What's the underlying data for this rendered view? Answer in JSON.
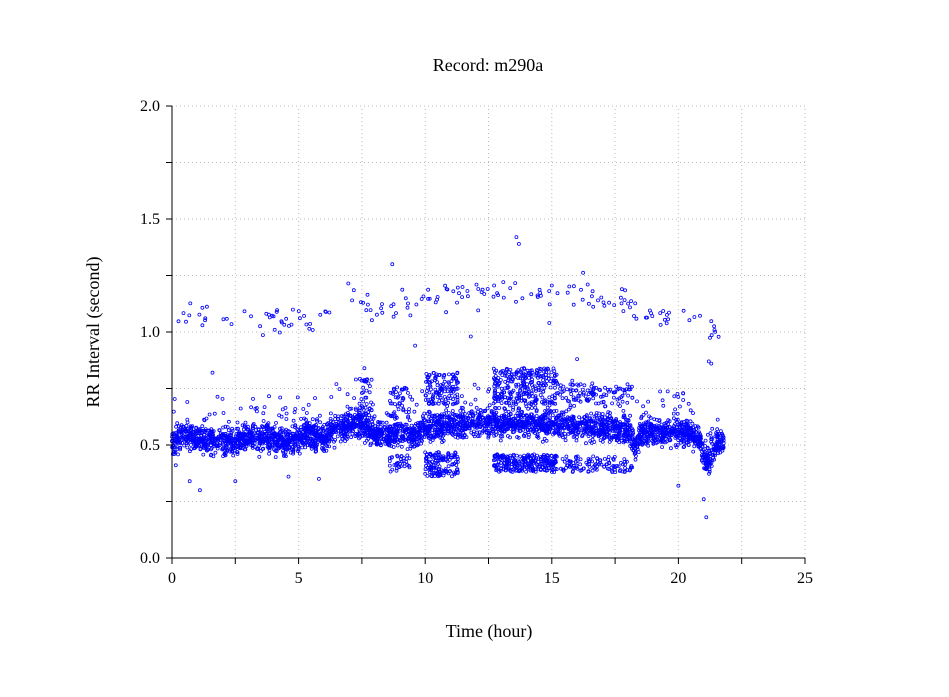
{
  "chart_data": {
    "type": "scatter",
    "title": "Record:  m290a",
    "xlabel": "Time (hour)",
    "ylabel": "RR Interval (second)",
    "xlim": [
      0,
      25
    ],
    "ylim": [
      0,
      2.0
    ],
    "xticks": [
      "0",
      "5",
      "10",
      "15",
      "20",
      "25"
    ],
    "xtick_values": [
      0,
      5,
      10,
      15,
      20,
      25
    ],
    "yticks": [
      "0.0",
      "0.5",
      "1.0",
      "1.5",
      "2.0"
    ],
    "ytick_values": [
      0,
      0.5,
      1.0,
      1.5,
      2.0
    ],
    "minor_x_step": 2.5,
    "minor_y_step": 0.25,
    "grid": true,
    "marker": "hollow-circle",
    "color": "#0000ff",
    "main_band": {
      "description_unit": "hour vs second",
      "x": [
        0,
        0.5,
        1,
        1.5,
        2,
        2.5,
        3,
        3.5,
        4,
        4.5,
        5,
        5.5,
        6,
        6.5,
        7,
        7.5,
        8,
        8.5,
        9,
        9.5,
        10,
        10.5,
        11,
        11.5,
        12,
        12.5,
        13,
        13.5,
        14,
        14.5,
        15,
        15.5,
        16,
        16.5,
        17,
        17.5,
        18,
        18.3,
        18.5,
        19,
        19.5,
        20,
        20.5,
        20.8,
        21,
        21.2,
        21.5,
        21.8
      ],
      "y": [
        0.52,
        0.54,
        0.53,
        0.52,
        0.52,
        0.51,
        0.53,
        0.53,
        0.53,
        0.5,
        0.54,
        0.55,
        0.53,
        0.57,
        0.59,
        0.6,
        0.55,
        0.55,
        0.56,
        0.54,
        0.57,
        0.58,
        0.59,
        0.59,
        0.6,
        0.6,
        0.6,
        0.6,
        0.6,
        0.59,
        0.59,
        0.59,
        0.59,
        0.58,
        0.58,
        0.57,
        0.57,
        0.5,
        0.55,
        0.56,
        0.56,
        0.56,
        0.55,
        0.54,
        0.45,
        0.42,
        0.5,
        0.52
      ],
      "spread": 0.03
    },
    "upper_band": {
      "x": [
        0.2,
        1,
        2,
        2.5,
        3,
        4,
        5,
        5.7,
        6.5,
        7,
        7.5,
        8,
        9,
        10,
        11,
        12,
        13,
        14,
        15,
        16,
        17,
        18,
        18.5,
        19,
        20,
        21,
        21.5,
        21.8
      ],
      "y": [
        1.04,
        1.06,
        1.05,
        1.0,
        1.05,
        1.04,
        1.06,
        1.05,
        1.15,
        1.17,
        1.12,
        1.1,
        1.12,
        1.15,
        1.16,
        1.17,
        1.18,
        1.16,
        1.17,
        1.18,
        1.14,
        1.14,
        1.05,
        1.05,
        1.08,
        1.05,
        1.0,
        1.03
      ],
      "spread": 0.03
    },
    "clusters": [
      {
        "x": [
          10.0,
          11.3
        ],
        "y": [
          0.68,
          0.82
        ],
        "count": 120
      },
      {
        "x": [
          10.0,
          11.3
        ],
        "y": [
          0.36,
          0.47
        ],
        "count": 130
      },
      {
        "x": [
          12.7,
          15.2
        ],
        "y": [
          0.68,
          0.84
        ],
        "count": 260
      },
      {
        "x": [
          12.7,
          15.2
        ],
        "y": [
          0.38,
          0.46
        ],
        "count": 260
      },
      {
        "x": [
          15.3,
          18.2
        ],
        "y": [
          0.68,
          0.77
        ],
        "count": 90
      },
      {
        "x": [
          15.3,
          18.2
        ],
        "y": [
          0.38,
          0.45
        ],
        "count": 110
      },
      {
        "x": [
          8.6,
          9.4
        ],
        "y": [
          0.62,
          0.76
        ],
        "count": 40
      },
      {
        "x": [
          8.6,
          9.4
        ],
        "y": [
          0.38,
          0.46
        ],
        "count": 35
      },
      {
        "x": [
          7.4,
          7.9
        ],
        "y": [
          0.62,
          0.8
        ],
        "count": 30
      }
    ],
    "outliers": {
      "x": [
        13.6,
        13.7,
        8.7,
        21.1,
        21.0,
        1.1,
        9.6,
        11.8,
        14.9,
        21.2,
        1.6,
        0.7,
        4.6,
        5.8,
        20.0,
        21.3,
        16.0,
        7.6,
        0.15,
        2.5
      ],
      "y": [
        1.42,
        1.39,
        1.3,
        0.18,
        0.26,
        0.3,
        0.94,
        0.98,
        1.04,
        0.87,
        0.82,
        0.34,
        0.36,
        0.35,
        0.32,
        0.86,
        0.88,
        0.84,
        0.41,
        0.34
      ]
    }
  }
}
